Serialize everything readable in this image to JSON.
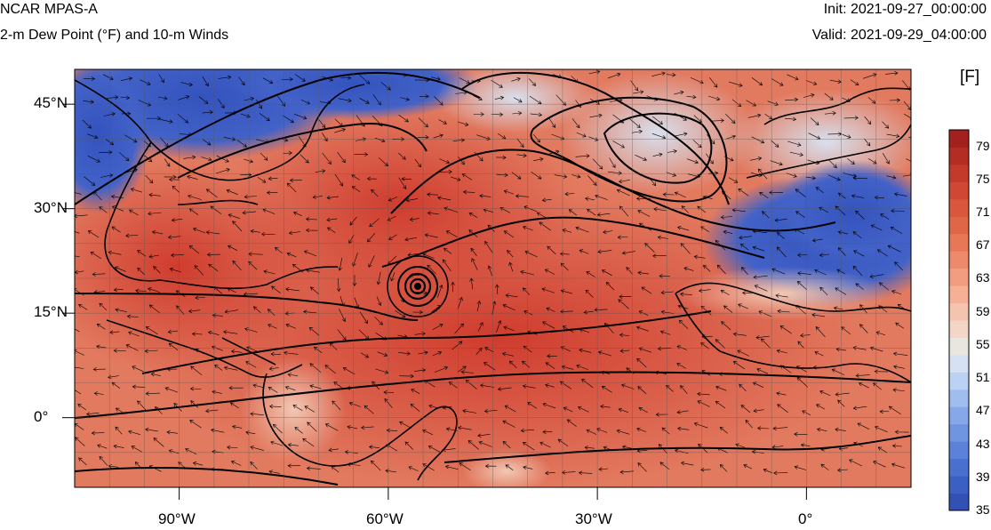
{
  "header": {
    "model": "NCAR MPAS-A",
    "field": "2-m Dew Point (°F) and 10-m Winds",
    "init": "Init: 2021-09-27_00:00:00",
    "valid": "Valid: 2021-09-29_04:00:00"
  },
  "map": {
    "lat_labels": [
      "45°N",
      "30°N",
      "15°N",
      "0°"
    ],
    "lon_labels": [
      "90°W",
      "60°W",
      "30°W",
      "0°"
    ],
    "lon_range": [
      -105,
      15
    ],
    "lat_range": [
      -10,
      50
    ],
    "grid": "on",
    "colors": {
      "land_outline": "#000000",
      "high": "#d6392e",
      "mid": "#dfdfdf",
      "low": "#3b5fc4"
    }
  },
  "colorbar": {
    "unit": "[F]",
    "labels": [
      "79",
      "75",
      "71",
      "67",
      "63",
      "59",
      "55",
      "51",
      "47",
      "43",
      "39",
      "35"
    ],
    "min": 35,
    "max": 81,
    "colors": [
      "#3350b4",
      "#3c5fc3",
      "#4a70cf",
      "#5b82d8",
      "#6f95e0",
      "#86a8e8",
      "#a0bdf0",
      "#bcd2f5",
      "#d6e1f4",
      "#e9e5df",
      "#f3d6c6",
      "#f5c4ae",
      "#f5b096",
      "#f39d80",
      "#ee8a6c",
      "#e87758",
      "#e06648",
      "#d9573c",
      "#d04833",
      "#c33a2a",
      "#b32d24",
      "#a2201d"
    ]
  }
}
